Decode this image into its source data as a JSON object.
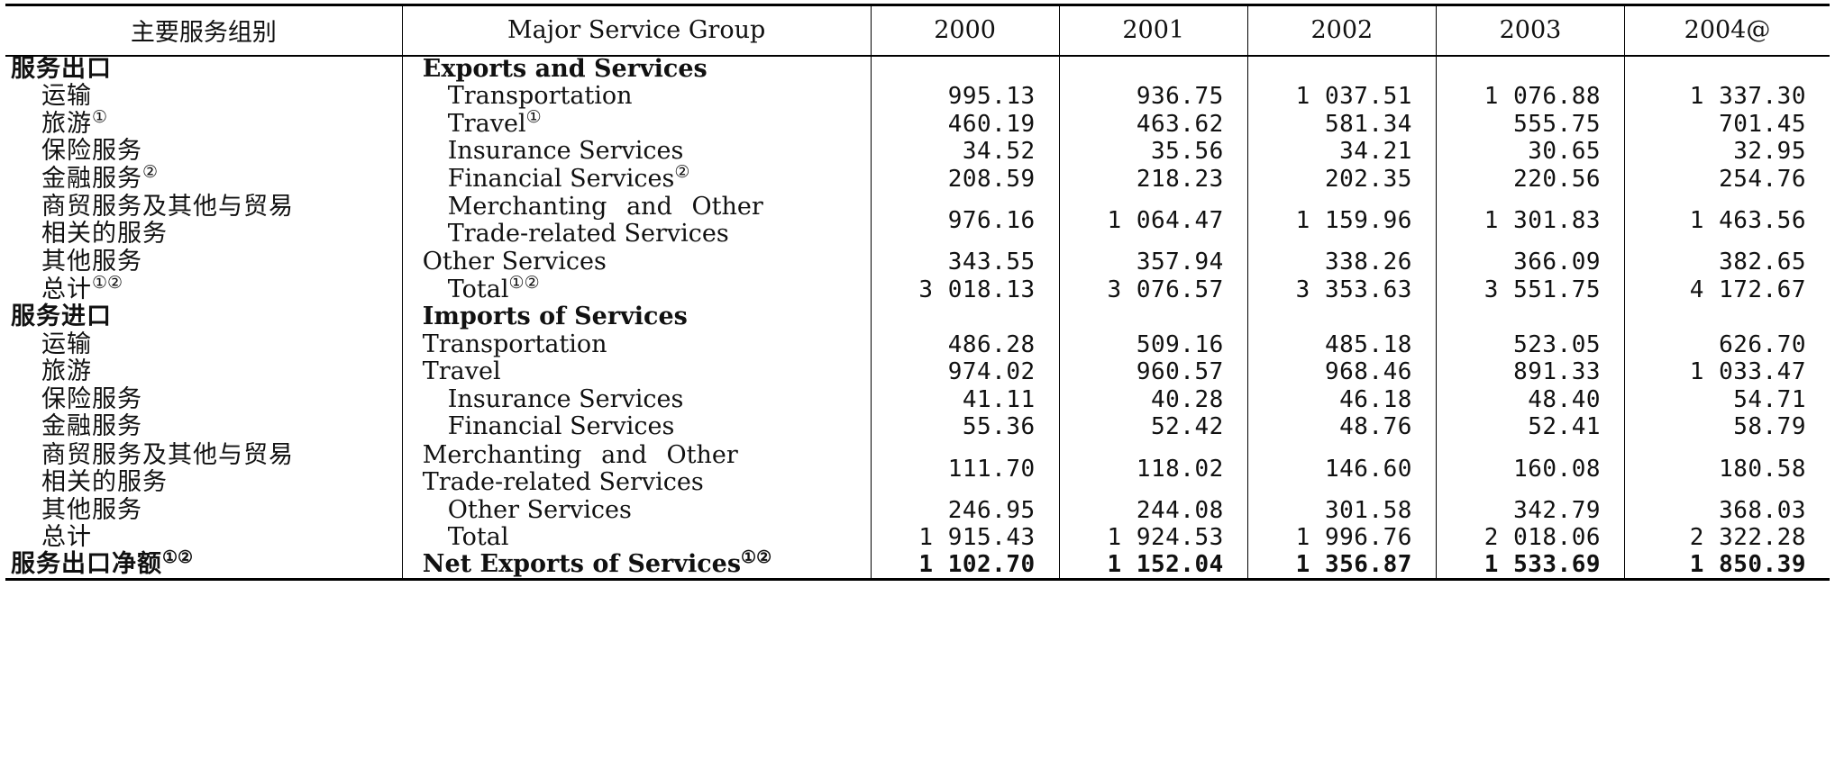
{
  "table": {
    "headers": [
      "主要服务组别",
      "Major Service Group",
      "2000",
      "2001",
      "2002",
      "2003",
      "2004@"
    ],
    "rows": [
      {
        "cn": "服务出口",
        "en": "Exports and Services",
        "type": "section",
        "values": [
          "",
          "",
          "",
          "",
          ""
        ]
      },
      {
        "cn": "运输",
        "en": "Transportation",
        "type": "sub",
        "values": [
          "995.13",
          "936.75",
          "1 037.51",
          "1 076.88",
          "1 337.30"
        ]
      },
      {
        "cn": "旅游",
        "cn_sup": "①",
        "en": "Travel",
        "en_sup": "①",
        "type": "sub",
        "values": [
          "460.19",
          "463.62",
          "581.34",
          "555.75",
          "701.45"
        ]
      },
      {
        "cn": "保险服务",
        "en": "Insurance Services",
        "type": "sub",
        "values": [
          "34.52",
          "35.56",
          "34.21",
          "30.65",
          "32.95"
        ]
      },
      {
        "cn": "金融服务",
        "cn_sup": "②",
        "en": "Financial Services",
        "en_sup": "②",
        "type": "sub",
        "values": [
          "208.59",
          "218.23",
          "202.35",
          "220.56",
          "254.76"
        ]
      },
      {
        "cn": "商贸服务及其他与贸易相关的服务",
        "en": "Merchanting and Other Trade-related Services",
        "type": "sub-tall",
        "values": [
          "976.16",
          "1 064.47",
          "1 159.96",
          "1 301.83",
          "1 463.56"
        ]
      },
      {
        "cn": "其他服务",
        "en": "Other Services",
        "type": "sub-plain",
        "values": [
          "343.55",
          "357.94",
          "338.26",
          "366.09",
          "382.65"
        ]
      },
      {
        "cn": "总计",
        "cn_sup": "①②",
        "en": "Total",
        "en_sup": "①②",
        "type": "sub",
        "values": [
          "3 018.13",
          "3 076.57",
          "3 353.63",
          "3 551.75",
          "4 172.67"
        ]
      },
      {
        "cn": "服务进口",
        "en": "Imports of Services",
        "type": "section",
        "values": [
          "",
          "",
          "",
          "",
          ""
        ]
      },
      {
        "cn": "运输",
        "en": "Transportation",
        "type": "sub-plain",
        "values": [
          "486.28",
          "509.16",
          "485.18",
          "523.05",
          "626.70"
        ]
      },
      {
        "cn": "旅游",
        "en": "Travel",
        "type": "sub-plain",
        "values": [
          "974.02",
          "960.57",
          "968.46",
          "891.33",
          "1 033.47"
        ]
      },
      {
        "cn": "保险服务",
        "en": "Insurance Services",
        "type": "sub",
        "values": [
          "41.11",
          "40.28",
          "46.18",
          "48.40",
          "54.71"
        ]
      },
      {
        "cn": "金融服务",
        "en": "Financial Services",
        "type": "sub",
        "values": [
          "55.36",
          "52.42",
          "48.76",
          "52.41",
          "58.79"
        ]
      },
      {
        "cn": "商贸服务及其他与贸易相关的服务",
        "en": "Merchanting and Other Trade-related Services",
        "type": "sub-tall-plain",
        "values": [
          "111.70",
          "118.02",
          "146.60",
          "160.08",
          "180.58"
        ]
      },
      {
        "cn": "其他服务",
        "en": "Other Services",
        "type": "sub",
        "values": [
          "246.95",
          "244.08",
          "301.58",
          "342.79",
          "368.03"
        ]
      },
      {
        "cn": "总计",
        "en": "Total",
        "type": "sub",
        "values": [
          "1 915.43",
          "1 924.53",
          "1 996.76",
          "2 018.06",
          "2 322.28"
        ]
      },
      {
        "cn": "服务出口净额",
        "cn_sup": "①②",
        "en": "Net Exports of Services",
        "en_sup": "①②",
        "type": "net",
        "values": [
          "1 102.70",
          "1 152.04",
          "1 356.87",
          "1 533.69",
          "1 850.39"
        ]
      }
    ]
  }
}
